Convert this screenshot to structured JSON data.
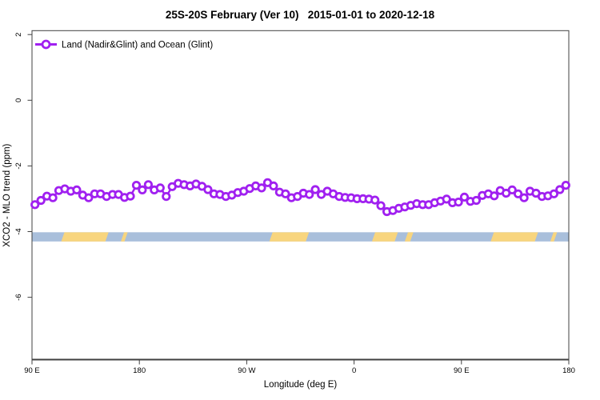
{
  "title": "25S-20S February (Ver 10)   2015-01-01 to 2020-12-18",
  "legend": {
    "label": "Land (Nadir&Glint) and Ocean (Glint)"
  },
  "colors": {
    "series": "#A020F0",
    "marker_fill": "#FFFFFF",
    "ocean_band": "#A9BFDB",
    "land_band": "#F8D57E",
    "frame": "#404040",
    "text": "#000000"
  },
  "chart_data": {
    "type": "line",
    "title": "25S-20S February (Ver 10)   2015-01-01 to 2020-12-18",
    "xlabel": "Longitude (deg E)",
    "ylabel": "XCO2 - MLO trend (ppm)",
    "xlim": [
      90,
      540
    ],
    "ylim": [
      -7.9,
      2.1
    ],
    "grid": false,
    "legend_position": "top-left",
    "x_ticks": [
      {
        "value": 90,
        "label": "90 E"
      },
      {
        "value": 180,
        "label": "180"
      },
      {
        "value": 270,
        "label": "90 W"
      },
      {
        "value": 360,
        "label": "0"
      },
      {
        "value": 450,
        "label": "90 E"
      },
      {
        "value": 540,
        "label": "180"
      }
    ],
    "y_ticks": [
      {
        "value": 2,
        "label": "2"
      },
      {
        "value": 0,
        "label": "0"
      },
      {
        "value": -2,
        "label": "-2"
      },
      {
        "value": -4,
        "label": "-4"
      },
      {
        "value": -6,
        "label": "-6"
      }
    ],
    "series": [
      {
        "name": "Land (Nadir&Glint) and Ocean (Glint)",
        "color": "#A020F0",
        "marker": "open-circle",
        "x": [
          92.5,
          97.5,
          102.5,
          107.5,
          112.5,
          117.5,
          122.5,
          127.5,
          132.5,
          137.5,
          142.5,
          147.5,
          152.5,
          157.5,
          162.5,
          167.5,
          172.5,
          177.5,
          182.5,
          187.5,
          192.5,
          197.5,
          202.5,
          207.5,
          212.5,
          217.5,
          222.5,
          227.5,
          232.5,
          237.5,
          242.5,
          247.5,
          252.5,
          257.5,
          262.5,
          267.5,
          272.5,
          277.5,
          282.5,
          287.5,
          292.5,
          297.5,
          302.5,
          307.5,
          312.5,
          317.5,
          322.5,
          327.5,
          332.5,
          337.5,
          342.5,
          347.5,
          352.5,
          357.5,
          362.5,
          367.5,
          372.5,
          377.5,
          382.5,
          387.5,
          392.5,
          397.5,
          402.5,
          407.5,
          412.5,
          417.5,
          422.5,
          427.5,
          432.5,
          437.5,
          442.5,
          447.5,
          452.5,
          457.5,
          462.5,
          467.5,
          472.5,
          477.5,
          482.5,
          487.5,
          492.5,
          497.5,
          502.5,
          507.5,
          512.5,
          517.5,
          522.5,
          527.5,
          532.5,
          537.5
        ],
        "y": [
          -3.18,
          -3.05,
          -2.92,
          -2.97,
          -2.75,
          -2.7,
          -2.77,
          -2.73,
          -2.89,
          -2.97,
          -2.85,
          -2.85,
          -2.93,
          -2.87,
          -2.87,
          -2.96,
          -2.92,
          -2.59,
          -2.73,
          -2.57,
          -2.73,
          -2.67,
          -2.93,
          -2.63,
          -2.53,
          -2.57,
          -2.61,
          -2.55,
          -2.62,
          -2.72,
          -2.85,
          -2.87,
          -2.93,
          -2.89,
          -2.81,
          -2.77,
          -2.69,
          -2.61,
          -2.67,
          -2.51,
          -2.61,
          -2.8,
          -2.85,
          -2.97,
          -2.93,
          -2.83,
          -2.87,
          -2.72,
          -2.87,
          -2.77,
          -2.85,
          -2.93,
          -2.96,
          -2.97,
          -3.0,
          -3.0,
          -3.01,
          -3.04,
          -3.21,
          -3.39,
          -3.36,
          -3.29,
          -3.25,
          -3.2,
          -3.15,
          -3.18,
          -3.18,
          -3.12,
          -3.07,
          -3.01,
          -3.12,
          -3.1,
          -2.95,
          -3.08,
          -3.05,
          -2.9,
          -2.85,
          -2.91,
          -2.75,
          -2.83,
          -2.73,
          -2.85,
          -2.97,
          -2.77,
          -2.83,
          -2.93,
          -2.91,
          -2.85,
          -2.72,
          -2.59
        ]
      }
    ],
    "surface_band": {
      "description": "land/ocean strip along longitude",
      "y_range": [
        -4.3,
        -4.02
      ],
      "ocean_extent": [
        90,
        540
      ],
      "land_segments": [
        [
          114.5,
          151.5
        ],
        [
          164.5,
          167.5
        ],
        [
          289,
          319.5
        ],
        [
          375,
          394
        ],
        [
          402.5,
          407
        ],
        [
          474.5,
          511.5
        ],
        [
          524.5,
          527.5
        ]
      ]
    }
  }
}
